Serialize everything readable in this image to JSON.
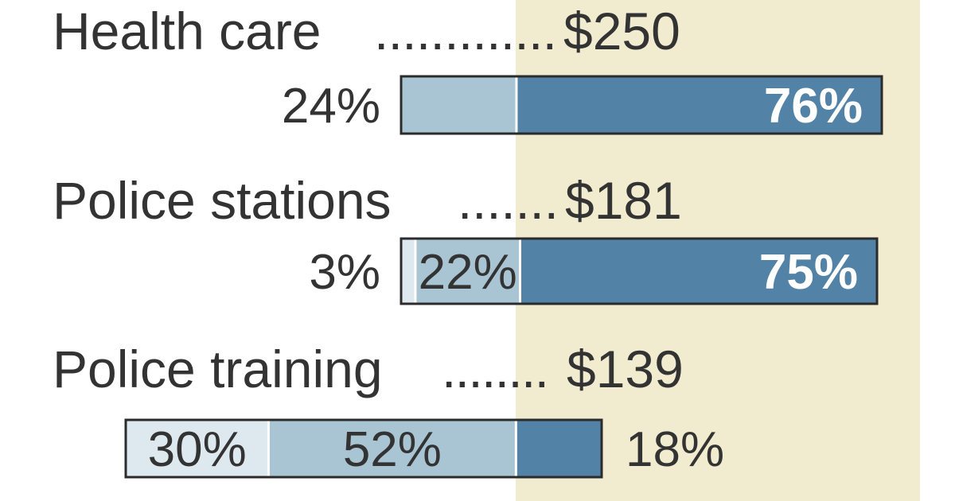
{
  "colors": {
    "band": "#f1ecd0",
    "segment_palest": "#dde9ef",
    "segment_light": "#a9c5d3",
    "segment_dark": "#5283a6",
    "text": "#333333"
  },
  "chart_data": {
    "type": "bar",
    "stacked": true,
    "orientation": "horizontal",
    "unit_prefix": "$",
    "categories": [
      "Health care",
      "Police stations",
      "Police training"
    ],
    "totals": [
      "$250",
      "$181",
      "$139"
    ],
    "rows": [
      {
        "category": "Health care",
        "total": "$250",
        "segments": [
          {
            "value": 0,
            "label": ""
          },
          {
            "value": 24,
            "label": "24%"
          },
          {
            "value": 76,
            "label": "76%"
          }
        ]
      },
      {
        "category": "Police stations",
        "total": "$181",
        "segments": [
          {
            "value": 3,
            "label": "3%"
          },
          {
            "value": 22,
            "label": "22%"
          },
          {
            "value": 75,
            "label": "75%"
          }
        ]
      },
      {
        "category": "Police training",
        "total": "$139",
        "segments": [
          {
            "value": 30,
            "label": "30%"
          },
          {
            "value": 52,
            "label": "52%"
          },
          {
            "value": 18,
            "label": "18%"
          }
        ]
      }
    ]
  }
}
